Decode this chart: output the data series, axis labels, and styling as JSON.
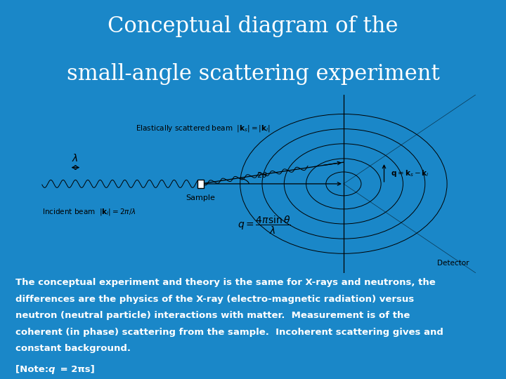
{
  "title_line1": "Conceptual diagram of the",
  "title_line2": "small-angle scattering experiment",
  "title_color": "white",
  "title_fontsize": 22,
  "bg_color": "#1a87c8",
  "body_text_lines": [
    "The conceptual experiment and theory is the same for X-rays and neutrons, the",
    "differences are the physics of the X-ray (electro-magnetic radiation) versus",
    "neutron (neutral particle) interactions with matter.  Measurement is of the",
    "coherent (in phase) scattering from the sample.  Incoherent scattering gives and",
    "constant background."
  ],
  "note_text": "[Note: q = 2πs]",
  "body_fontsize": 9.5,
  "note_fontsize": 9.5
}
